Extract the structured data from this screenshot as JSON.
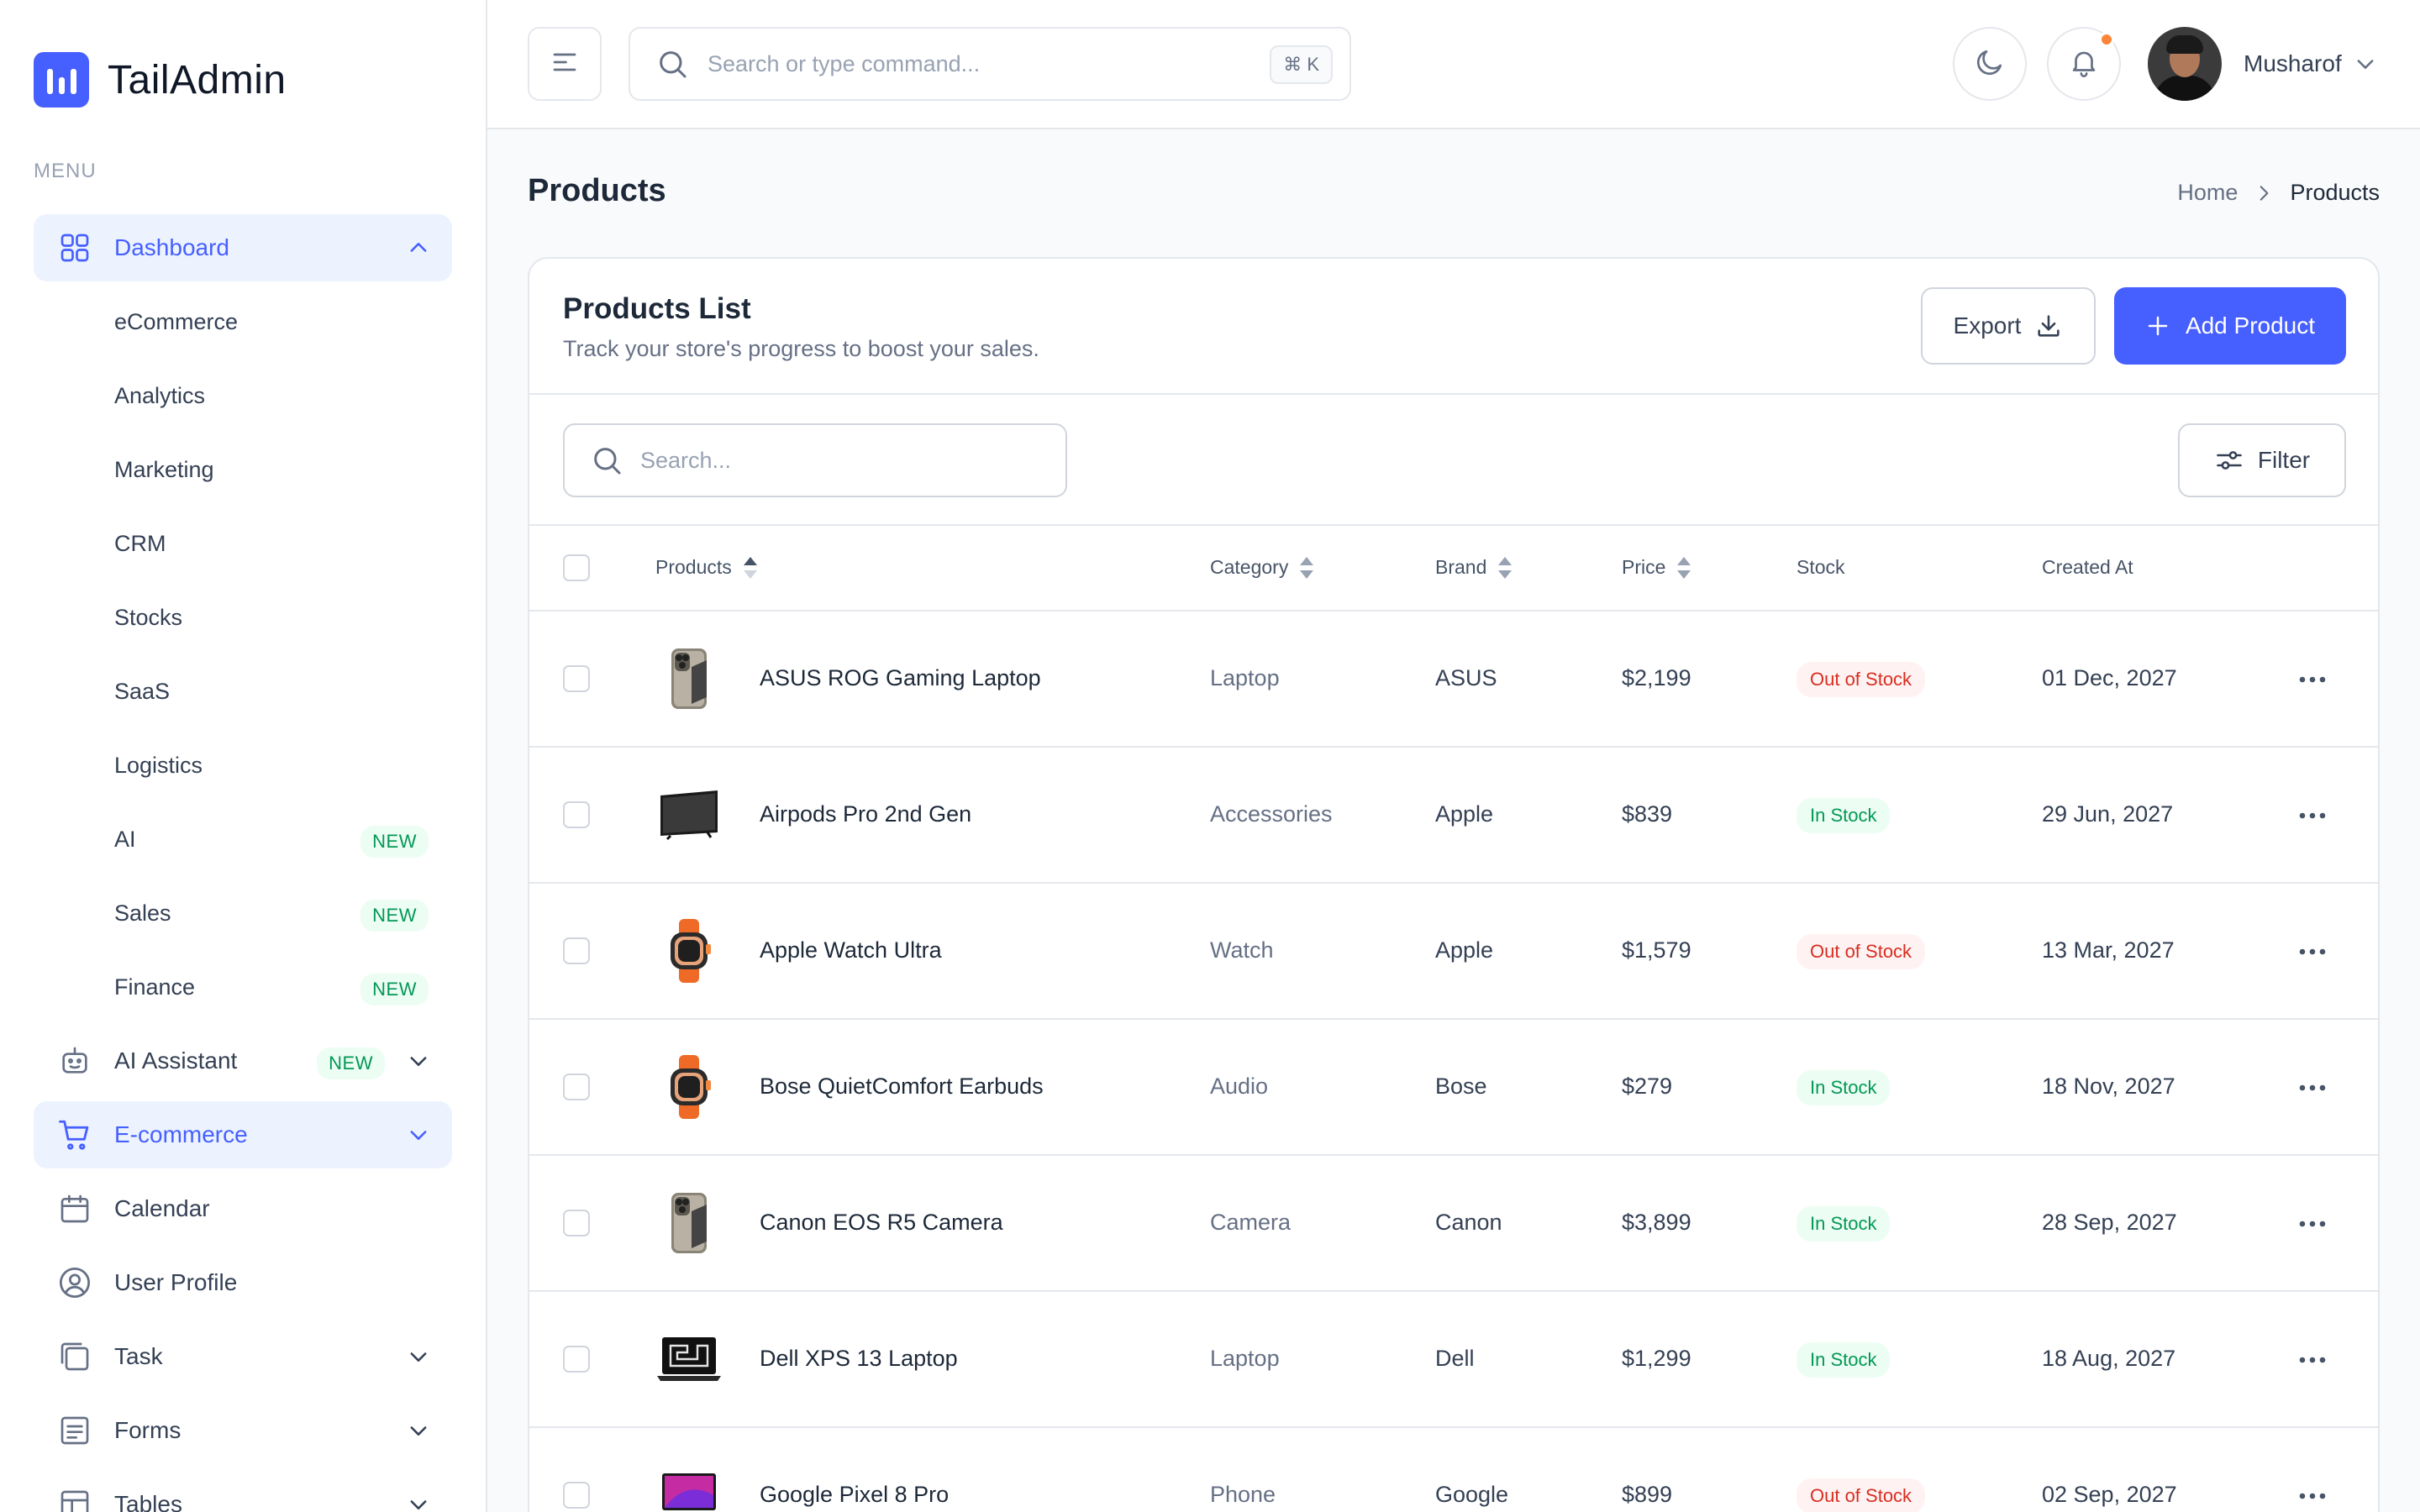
{
  "app": {
    "name": "TailAdmin"
  },
  "sidebar": {
    "menu_label": "MENU",
    "dashboard": {
      "label": "Dashboard"
    },
    "sub_items": [
      {
        "label": "eCommerce",
        "badge": ""
      },
      {
        "label": "Analytics",
        "badge": ""
      },
      {
        "label": "Marketing",
        "badge": ""
      },
      {
        "label": "CRM",
        "badge": ""
      },
      {
        "label": "Stocks",
        "badge": ""
      },
      {
        "label": "SaaS",
        "badge": ""
      },
      {
        "label": "Logistics",
        "badge": ""
      },
      {
        "label": "AI",
        "badge": "NEW"
      },
      {
        "label": "Sales",
        "badge": "NEW"
      },
      {
        "label": "Finance",
        "badge": "NEW"
      }
    ],
    "items": [
      {
        "label": "AI Assistant",
        "badge": "NEW",
        "icon": "robot-icon"
      },
      {
        "label": "E-commerce",
        "badge": "",
        "icon": "cart-icon"
      },
      {
        "label": "Calendar",
        "badge": "",
        "icon": "calendar-icon"
      },
      {
        "label": "User Profile",
        "badge": "",
        "icon": "user-circle-icon"
      },
      {
        "label": "Task",
        "badge": "",
        "icon": "task-icon"
      },
      {
        "label": "Forms",
        "badge": "",
        "icon": "forms-icon"
      },
      {
        "label": "Tables",
        "badge": "",
        "icon": "table-icon"
      }
    ]
  },
  "header": {
    "search_placeholder": "Search or type command...",
    "search_shortcut": "⌘ K",
    "user_name": "Musharof"
  },
  "page": {
    "title": "Products",
    "breadcrumb": {
      "home": "Home",
      "current": "Products"
    }
  },
  "card": {
    "title": "Products List",
    "subtitle": "Track your store's progress to boost your sales.",
    "export_label": "Export",
    "add_label": "Add Product",
    "search_placeholder": "Search...",
    "filter_label": "Filter"
  },
  "table": {
    "columns": {
      "products": "Products",
      "category": "Category",
      "brand": "Brand",
      "price": "Price",
      "stock": "Stock",
      "created_at": "Created At"
    },
    "rows": [
      {
        "name": "ASUS ROG Gaming Laptop",
        "category": "Laptop",
        "brand": "ASUS",
        "price": "$2,199",
        "stock": "Out of Stock",
        "in_stock": false,
        "created": "01 Dec, 2027",
        "thumb": "phone"
      },
      {
        "name": "Airpods Pro 2nd Gen",
        "category": "Accessories",
        "brand": "Apple",
        "price": "$839",
        "stock": "In Stock",
        "in_stock": true,
        "created": "29 Jun, 2027",
        "thumb": "tv"
      },
      {
        "name": "Apple Watch Ultra",
        "category": "Watch",
        "brand": "Apple",
        "price": "$1,579",
        "stock": "Out of Stock",
        "in_stock": false,
        "created": "13 Mar, 2027",
        "thumb": "watch"
      },
      {
        "name": "Bose QuietComfort Earbuds",
        "category": "Audio",
        "brand": "Bose",
        "price": "$279",
        "stock": "In Stock",
        "in_stock": true,
        "created": "18 Nov, 2027",
        "thumb": "watch"
      },
      {
        "name": "Canon EOS R5 Camera",
        "category": "Camera",
        "brand": "Canon",
        "price": "$3,899",
        "stock": "In Stock",
        "in_stock": true,
        "created": "28 Sep, 2027",
        "thumb": "phone"
      },
      {
        "name": "Dell XPS 13 Laptop",
        "category": "Laptop",
        "brand": "Dell",
        "price": "$1,299",
        "stock": "In Stock",
        "in_stock": true,
        "created": "18 Aug, 2027",
        "thumb": "laptop"
      },
      {
        "name": "Google Pixel 8 Pro",
        "category": "Phone",
        "brand": "Google",
        "price": "$899",
        "stock": "Out of Stock",
        "in_stock": false,
        "created": "02 Sep, 2027",
        "thumb": "macbook"
      }
    ]
  },
  "colors": {
    "brand": "#465fff",
    "brand_light": "#ecf3ff",
    "success": "#039855",
    "error": "#d92d20"
  }
}
